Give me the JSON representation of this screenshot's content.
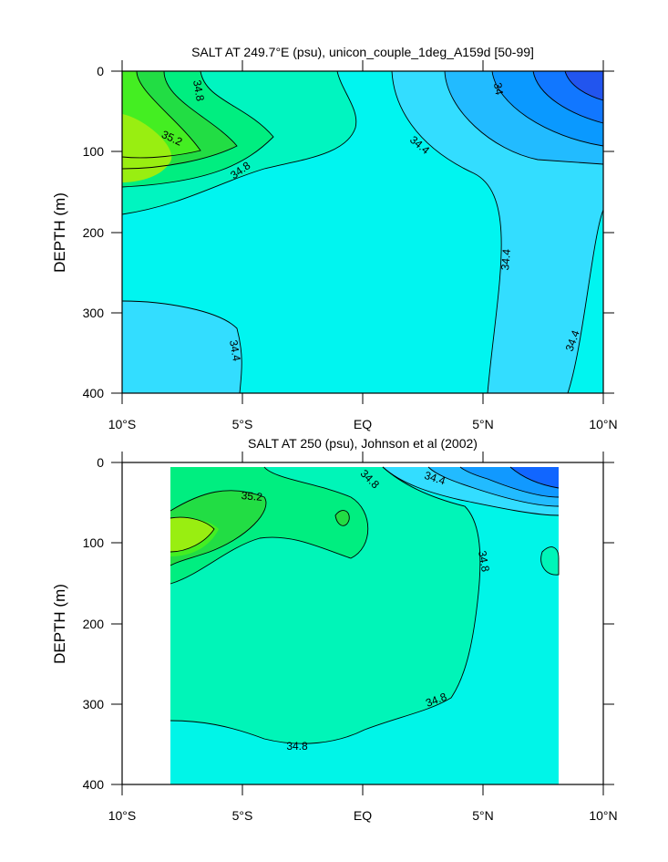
{
  "chart_data": [
    {
      "type": "contour",
      "title": "SALT AT 249.7°E (psu), unicon_couple_1deg_A159d [50-99]",
      "ylabel": "DEPTH (m)",
      "xlabel": "",
      "x_tick_labels": [
        "10°S",
        "5°S",
        "EQ",
        "5°N",
        "10°N"
      ],
      "x_ticks": [
        -10,
        -5,
        0,
        5,
        10
      ],
      "y_tick_labels": [
        "0",
        "100",
        "200",
        "300",
        "400"
      ],
      "y_ticks": [
        0,
        100,
        200,
        300,
        400
      ],
      "xlim": [
        -10,
        10
      ],
      "ylim": [
        400,
        0
      ],
      "contour_labels": [
        "34.8",
        "35.2",
        "34.8",
        "34.4",
        "34",
        "34.4",
        "34.4",
        "34.4"
      ],
      "colors": {
        "lvl_33_6": "#2255ee",
        "lvl_33_8": "#1177ff",
        "lvl_34_0": "#0a99ff",
        "lvl_34_2": "#22bbff",
        "lvl_34_4": "#33ddff",
        "lvl_34_6": "#00f5f0",
        "lvl_34_8": "#00f5c0",
        "lvl_35_0": "#00ee80",
        "lvl_35_2": "#22dd44",
        "lvl_35_4": "#44ee22",
        "lvl_35_6": "#99ee11"
      }
    },
    {
      "type": "contour",
      "title": "SALT AT 250 (psu), Johnson et al (2002)",
      "ylabel": "DEPTH (m)",
      "xlabel": "",
      "x_tick_labels": [
        "10°S",
        "5°S",
        "EQ",
        "5°N",
        "10°N"
      ],
      "x_ticks": [
        -10,
        -5,
        0,
        5,
        10
      ],
      "y_tick_labels": [
        "0",
        "100",
        "200",
        "300",
        "400"
      ],
      "y_ticks": [
        0,
        100,
        200,
        300,
        400
      ],
      "xlim": [
        -10,
        10
      ],
      "ylim": [
        400,
        0
      ],
      "data_extent_x": [
        -8,
        8.2
      ],
      "data_extent_y": [
        10,
        400
      ],
      "contour_labels": [
        "35.2",
        "34.8",
        "34.4",
        "34.8",
        "34.8",
        "34.8"
      ],
      "colors": {
        "lvl_33_8": "#1166ff",
        "lvl_34_0": "#1199ff",
        "lvl_34_2": "#22bbff",
        "lvl_34_4": "#33ddff",
        "lvl_34_6": "#00f5e8",
        "lvl_34_8": "#00f5b8",
        "lvl_35_0": "#00ee80",
        "lvl_35_2": "#22dd44",
        "lvl_35_4": "#44ee22",
        "lvl_35_6": "#99ee11"
      }
    }
  ]
}
